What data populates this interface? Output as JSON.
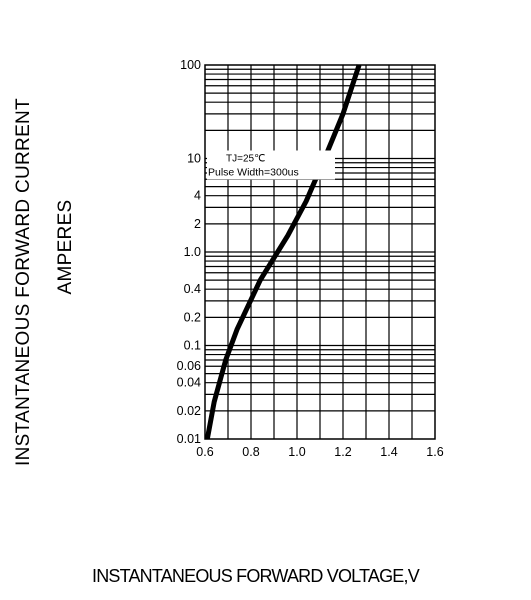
{
  "chart_data": {
    "type": "line",
    "ylabel_line1": "INSTANTANEOUS FORWARD CURRENT",
    "ylabel_line2": "AMPERES",
    "xlabel": "INSTANTANEOUS FORWARD VOLTAGE,V",
    "xlim": [
      0.6,
      1.6
    ],
    "ylim": [
      0.01,
      100
    ],
    "y_scale": "log",
    "x_ticks": [
      "0.6",
      "0.8",
      "1.0",
      "1.2",
      "1.4",
      "1.6"
    ],
    "y_ticks": [
      "0.01",
      "0.02",
      "0.04",
      "0.06",
      "0.1",
      "0.2",
      "0.4",
      "1.0",
      "2",
      "4",
      "10",
      "100"
    ],
    "grid": true,
    "annotation_line1": "TJ=25℃",
    "annotation_line2": "Pulse Width=300us",
    "series": [
      {
        "points": [
          {
            "x": 0.61,
            "y": 0.01
          },
          {
            "x": 0.64,
            "y": 0.025
          },
          {
            "x": 0.69,
            "y": 0.07
          },
          {
            "x": 0.74,
            "y": 0.15
          },
          {
            "x": 0.84,
            "y": 0.5
          },
          {
            "x": 0.96,
            "y": 1.5
          },
          {
            "x": 1.04,
            "y": 3.5
          },
          {
            "x": 1.12,
            "y": 10
          },
          {
            "x": 1.2,
            "y": 30
          },
          {
            "x": 1.27,
            "y": 100
          }
        ]
      }
    ],
    "line_color": "#000000"
  }
}
